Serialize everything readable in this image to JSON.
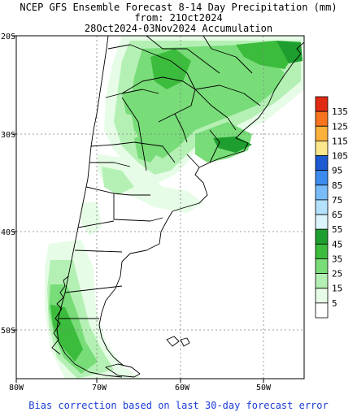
{
  "header": {
    "line1": "NCEP GFS Ensemble Forecast 8-14 Day Precipitation (mm)",
    "line2": "from: 21Oct2024",
    "line3": "28Oct2024-03Nov2024 Accumulation"
  },
  "axes": {
    "lon_labels": [
      "80W",
      "70W",
      "60W",
      "50W"
    ],
    "lat_labels": [
      "20S",
      "30S",
      "40S",
      "50S"
    ]
  },
  "legend": {
    "items": [
      {
        "label": "135",
        "color": "#e02a14"
      },
      {
        "label": "125",
        "color": "#f7731e"
      },
      {
        "label": "115",
        "color": "#fbb13c"
      },
      {
        "label": "105",
        "color": "#fbe78c"
      },
      {
        "label": "95",
        "color": "#1e5ad2"
      },
      {
        "label": "85",
        "color": "#3c8cf0"
      },
      {
        "label": "75",
        "color": "#78bcfa"
      },
      {
        "label": "65",
        "color": "#b4e1fb"
      },
      {
        "label": "55",
        "color": "#dcf5fc"
      },
      {
        "label": "45",
        "color": "#1e9e2e"
      },
      {
        "label": "35",
        "color": "#3cbc3c"
      },
      {
        "label": "25",
        "color": "#78dc78"
      },
      {
        "label": "15",
        "color": "#b4f0b4"
      },
      {
        "label": "5",
        "color": "#e6fce6"
      },
      {
        "label": "",
        "color": "#ffffff"
      }
    ]
  },
  "footer": "Bias correction based on last 30-day forecast error"
}
